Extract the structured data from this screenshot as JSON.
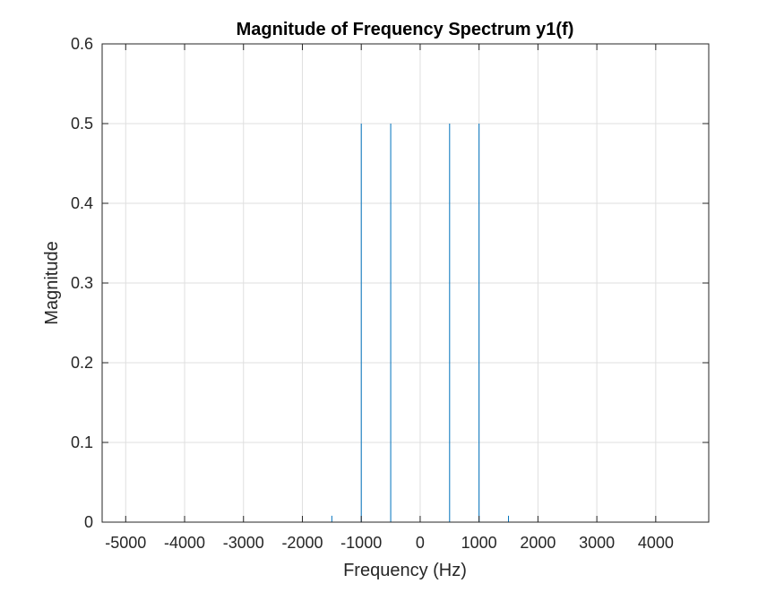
{
  "chart_data": {
    "type": "stem",
    "title": "Magnitude of Frequency Spectrum y1(f)",
    "xlabel": "Frequency (Hz)",
    "ylabel": "Magnitude",
    "xlim": [
      -5400,
      4900
    ],
    "ylim": [
      0,
      0.6
    ],
    "xticks": [
      -5000,
      -4000,
      -3000,
      -2000,
      -1000,
      0,
      1000,
      2000,
      3000,
      4000
    ],
    "yticks": [
      0,
      0.1,
      0.2,
      0.3,
      0.4,
      0.5,
      0.6
    ],
    "grid": true,
    "series": [
      {
        "color": "#0072bd",
        "x": [
          -1500,
          -1000,
          -500,
          500,
          1000,
          1500
        ],
        "y": [
          0.008,
          0.5,
          0.5,
          0.5,
          0.5,
          0.008
        ]
      }
    ]
  }
}
